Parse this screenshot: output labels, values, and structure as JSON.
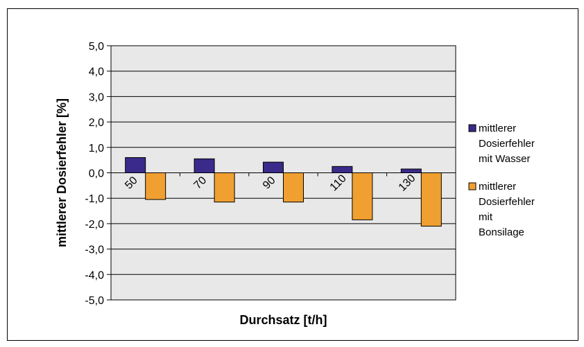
{
  "chart_data": {
    "type": "bar",
    "categories": [
      "50",
      "70",
      "90",
      "110",
      "130"
    ],
    "series": [
      {
        "name": "mittlerer Dosierfehler mit Wasser",
        "legend_lines": [
          "mittlerer",
          "Dosierfehler",
          "mit Wasser"
        ],
        "color": "#3a2a8a",
        "values": [
          0.6,
          0.55,
          0.42,
          0.25,
          0.15
        ]
      },
      {
        "name": "mittlerer Dosierfehler mit Bonsilage",
        "legend_lines": [
          "mittlerer",
          "Dosierfehler",
          "mit",
          "Bonsilage"
        ],
        "color": "#f0a030",
        "values": [
          -1.05,
          -1.15,
          -1.15,
          -1.85,
          -2.1
        ]
      }
    ],
    "xlabel": "Durchsatz [t/h]",
    "ylabel": "mittlerer Dosierfehler [%]",
    "ylim": [
      -5,
      5
    ],
    "yticks": [
      "5,0",
      "4,0",
      "3,0",
      "2,0",
      "1,0",
      "0,0",
      "-1,0",
      "-2,0",
      "-3,0",
      "-4,0",
      "-5,0"
    ],
    "grid": true,
    "plot_background": "#e8e8e8",
    "legend_position": "right"
  }
}
